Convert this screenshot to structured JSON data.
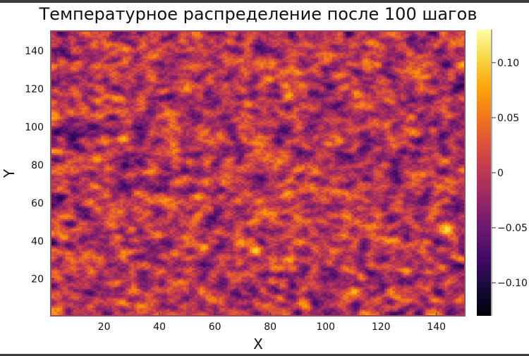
{
  "chart_data": {
    "type": "heatmap",
    "title": "Температурное распределение после 100 шагов",
    "xlabel": "X",
    "ylabel": "Y",
    "xlim": [
      1,
      150
    ],
    "ylim": [
      1,
      150
    ],
    "xticks": [
      {
        "value": 20,
        "label": "20"
      },
      {
        "value": 40,
        "label": "40"
      },
      {
        "value": 60,
        "label": "60"
      },
      {
        "value": 80,
        "label": "80"
      },
      {
        "value": 100,
        "label": "100"
      },
      {
        "value": 120,
        "label": "120"
      },
      {
        "value": 140,
        "label": "140"
      }
    ],
    "yticks": [
      {
        "value": 20,
        "label": "20"
      },
      {
        "value": 40,
        "label": "40"
      },
      {
        "value": 60,
        "label": "60"
      },
      {
        "value": 80,
        "label": "80"
      },
      {
        "value": 100,
        "label": "100"
      },
      {
        "value": 120,
        "label": "120"
      },
      {
        "value": 140,
        "label": "140"
      }
    ],
    "grid_size": [
      150,
      150
    ],
    "colormap": "inferno",
    "colorbar": {
      "range": [
        -0.13,
        0.13
      ],
      "ticks": [
        {
          "value": 0.1,
          "label": "0.10"
        },
        {
          "value": 0.05,
          "label": "0.05"
        },
        {
          "value": 0.0,
          "label": "0"
        },
        {
          "value": -0.05,
          "label": "−0.05"
        },
        {
          "value": -0.1,
          "label": "−0.10"
        }
      ]
    },
    "value_distribution": {
      "typical_range": [
        -0.1,
        0.11
      ],
      "texture": "spatially correlated random noise"
    },
    "colors": {
      "frame": "#a6465a"
    }
  }
}
